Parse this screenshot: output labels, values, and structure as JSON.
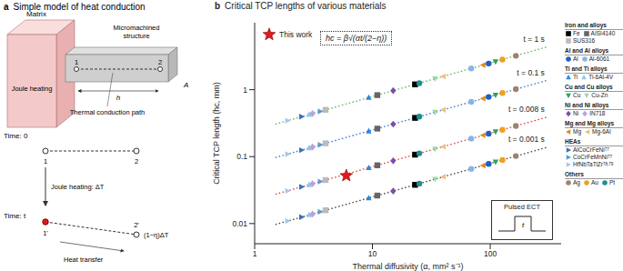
{
  "panel_a": {
    "letter": "a",
    "title": "Simple model of heat conduction",
    "matrix": "Matrix",
    "joule": "Joule heating",
    "structure": "Micromachined structure",
    "path": "Thermal conduction path",
    "p1": "1",
    "p2": "2",
    "h": "h",
    "A": "A",
    "time0": "Time: 0",
    "timet": "Time: t",
    "heating": "Joule heating: ΔT",
    "p1t": "1'",
    "p2t": "2'",
    "transfer": "Heat transfer",
    "remain": "(1−η)ΔT"
  },
  "chart_data": {
    "type": "scatter",
    "panel_letter": "b",
    "title": "Critical TCP lengths of various materials",
    "xlabel": "Thermal diffusivity (α, mm² s⁻¹)",
    "ylabel": "Critical TCP length (hc, mm)",
    "formula": "hc = β√(αt/(2−η))",
    "inset": {
      "label": "Pulsed ECT",
      "pulse": "t"
    },
    "log": true,
    "grid": false,
    "legend": "upper left",
    "xlim": [
      1,
      400
    ],
    "ylim": [
      0.005,
      10
    ],
    "xticks": [
      1,
      10,
      100
    ],
    "yticks": [
      0.01,
      0.1,
      1
    ],
    "series": [
      {
        "name": "t = 1 s",
        "type": "line",
        "line_style": "dotted",
        "color": "#5cb85c",
        "x": [
          1.5,
          300
        ],
        "values": [
          0.306,
          4.33
        ]
      },
      {
        "name": "t = 0.1 s",
        "type": "line",
        "line_style": "dotted",
        "color": "#3a7bd5",
        "x": [
          1.5,
          300
        ],
        "values": [
          0.0968,
          1.37
        ]
      },
      {
        "name": "t = 0.008 s",
        "type": "line",
        "line_style": "dotted",
        "color": "#e0443a",
        "x": [
          1.5,
          300
        ],
        "values": [
          0.0274,
          0.387
        ]
      },
      {
        "name": "t = 0.001 s",
        "type": "line",
        "line_style": "dotted",
        "color": "#444444",
        "x": [
          1.5,
          300
        ],
        "values": [
          0.00968,
          0.137
        ]
      },
      {
        "name": "Fe",
        "type": "scatter",
        "marker": "square",
        "color": "#000000",
        "x": [
          23,
          23,
          23,
          23
        ],
        "values": [
          1.2,
          0.379,
          0.107,
          0.0379
        ]
      },
      {
        "name": "AISI4140",
        "type": "scatter",
        "marker": "square",
        "color": "#666666",
        "x": [
          11,
          11,
          11,
          11
        ],
        "values": [
          0.829,
          0.262,
          0.0742,
          0.0262
        ]
      },
      {
        "name": "SUS316",
        "type": "scatter",
        "marker": "square",
        "color": "#bbbbbb",
        "x": [
          4,
          4,
          4,
          4
        ],
        "values": [
          0.5,
          0.158,
          0.0447,
          0.0158
        ]
      },
      {
        "name": "Al",
        "type": "scatter",
        "marker": "circle",
        "color": "#1f5fbf",
        "x": [
          97,
          97,
          97,
          97
        ],
        "values": [
          2.46,
          0.779,
          0.22,
          0.0779
        ]
      },
      {
        "name": "Al-6061",
        "type": "scatter",
        "marker": "circle",
        "color": "#8ab4e8",
        "x": [
          69,
          69,
          69,
          69
        ],
        "values": [
          2.08,
          0.657,
          0.186,
          0.0657
        ]
      },
      {
        "name": "Ti",
        "type": "scatter",
        "marker": "triangle",
        "color": "#2e86de",
        "x": [
          9.3,
          9.3,
          9.3,
          9.3
        ],
        "values": [
          0.762,
          0.241,
          0.0682,
          0.0241
        ]
      },
      {
        "name": "Ti-6Al-4V",
        "type": "scatter",
        "marker": "triangle",
        "color": "#8fc8f0",
        "x": [
          2.9,
          2.9,
          2.9,
          2.9
        ],
        "values": [
          0.426,
          0.135,
          0.0381,
          0.0135
        ]
      },
      {
        "name": "Cu",
        "type": "scatter",
        "marker": "triangle-down",
        "color": "#2e9e5b",
        "x": [
          111,
          111,
          111,
          111
        ],
        "values": [
          2.63,
          0.833,
          0.236,
          0.0833
        ]
      },
      {
        "name": "Cu-Zn",
        "type": "scatter",
        "marker": "triangle-down",
        "color": "#9fd8a8",
        "x": [
          34,
          34,
          34,
          34
        ],
        "values": [
          1.46,
          0.461,
          0.13,
          0.0461
        ]
      },
      {
        "name": "Ni",
        "type": "scatter",
        "marker": "diamond",
        "color": "#7b4fa8",
        "x": [
          15,
          15,
          15,
          15
        ],
        "values": [
          0.968,
          0.306,
          0.0866,
          0.0306
        ]
      },
      {
        "name": "IN718",
        "type": "scatter",
        "marker": "diamond",
        "color": "#b9a3d6",
        "x": [
          3.1,
          3.1,
          3.1,
          3.1
        ],
        "values": [
          0.44,
          0.139,
          0.0394,
          0.0139
        ]
      },
      {
        "name": "Mg",
        "type": "scatter",
        "marker": "triangle-left",
        "color": "#e08a1e",
        "x": [
          87,
          87,
          87,
          87
        ],
        "values": [
          2.33,
          0.737,
          0.209,
          0.0737
        ]
      },
      {
        "name": "Mg-6Al",
        "type": "scatter",
        "marker": "triangle-left",
        "color": "#f2c07a",
        "x": [
          40,
          40,
          40,
          40
        ],
        "values": [
          1.58,
          0.5,
          0.141,
          0.05
        ]
      },
      {
        "name": "AlCoCrFeNi",
        "ref": "77",
        "type": "scatter",
        "marker": "triangle-right",
        "color": "#3b6fb6",
        "x": [
          2.5,
          2.5,
          2.5,
          2.5
        ],
        "values": [
          0.395,
          0.125,
          0.0354,
          0.0125
        ]
      },
      {
        "name": "CoCrFeMnNi",
        "ref": "77",
        "type": "scatter",
        "marker": "triangle-right",
        "color": "#5a9bd5",
        "x": [
          3.6,
          3.6,
          3.6,
          3.6
        ],
        "values": [
          0.474,
          0.15,
          0.0424,
          0.015
        ]
      },
      {
        "name": "HfNbTaTiZr",
        "ref": "78,79",
        "type": "scatter",
        "marker": "triangle-right",
        "color": "#a8c8e8",
        "x": [
          1.9,
          1.9,
          1.9,
          1.9
        ],
        "values": [
          0.345,
          0.109,
          0.0308,
          0.0109
        ]
      },
      {
        "name": "Ag",
        "type": "scatter",
        "marker": "circle",
        "color": "#a0826d",
        "x": [
          165,
          165,
          165,
          165
        ],
        "values": [
          3.21,
          1.02,
          0.287,
          0.102
        ]
      },
      {
        "name": "Au",
        "type": "scatter",
        "marker": "circle",
        "color": "#f0a020",
        "x": [
          127,
          127,
          127,
          127
        ],
        "values": [
          2.82,
          0.891,
          0.252,
          0.0891
        ]
      },
      {
        "name": "Pt",
        "type": "scatter",
        "marker": "circle",
        "color": "#1f8f8f",
        "x": [
          25,
          25,
          25,
          25
        ],
        "values": [
          1.25,
          0.395,
          0.112,
          0.0395
        ]
      },
      {
        "name": "This work",
        "type": "scatter",
        "marker": "star",
        "color": "#e31a1c",
        "x": [
          6
        ],
        "values": [
          0.052
        ]
      }
    ],
    "legend_groups": [
      {
        "title": "Iron and alloys",
        "items": [
          "Fe",
          "AISI4140",
          "SUS316"
        ]
      },
      {
        "title": "Al and Al alloys",
        "items": [
          "Al",
          "Al-6061"
        ]
      },
      {
        "title": "Ti and Ti alloys",
        "items": [
          "Ti",
          "Ti-6Al-4V"
        ]
      },
      {
        "title": "Cu and Cu alloys",
        "items": [
          "Cu",
          "Cu-Zn"
        ]
      },
      {
        "title": "Ni and Ni alloys",
        "items": [
          "Ni",
          "IN718"
        ]
      },
      {
        "title": "Mg and Mg alloys",
        "items": [
          "Mg",
          "Mg-6Al"
        ]
      },
      {
        "title": "HEAs",
        "items": [
          "AlCoCrFeNi",
          "CoCrFeMnNi",
          "HfNbTaTiZr"
        ]
      },
      {
        "title": "Others",
        "items": [
          "Ag",
          "Au",
          "Pt"
        ]
      }
    ]
  }
}
